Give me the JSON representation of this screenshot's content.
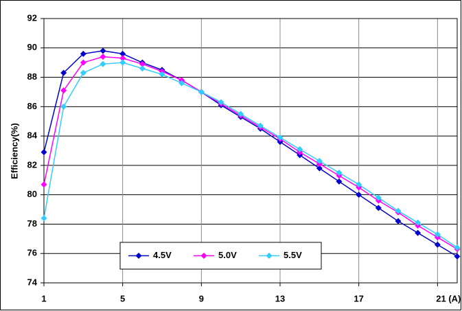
{
  "chart_data": {
    "type": "line",
    "ylabel": "Efficiency(%)",
    "x": [
      1,
      2,
      3,
      4,
      5,
      6,
      7,
      8,
      9,
      10,
      11,
      12,
      13,
      14,
      15,
      16,
      17,
      18,
      19,
      20,
      21,
      22
    ],
    "series": [
      {
        "name": "4.5V",
        "color": "#0000cc",
        "values": [
          82.9,
          88.3,
          89.6,
          89.8,
          89.6,
          89.0,
          88.5,
          87.8,
          87.0,
          86.1,
          85.3,
          84.5,
          83.6,
          82.7,
          81.8,
          80.9,
          80.0,
          79.1,
          78.2,
          77.4,
          76.6,
          75.8
        ]
      },
      {
        "name": "5.0V",
        "color": "#ff00ff",
        "values": [
          80.7,
          87.1,
          89.0,
          89.4,
          89.3,
          88.9,
          88.4,
          87.8,
          87.0,
          86.2,
          85.4,
          84.6,
          83.8,
          82.9,
          82.1,
          81.3,
          80.5,
          79.6,
          78.8,
          77.9,
          77.1,
          76.3
        ]
      },
      {
        "name": "5.5V",
        "color": "#33ccff",
        "values": [
          78.4,
          86.0,
          88.3,
          88.9,
          89.0,
          88.6,
          88.2,
          87.6,
          87.0,
          86.3,
          85.5,
          84.7,
          83.9,
          83.1,
          82.3,
          81.5,
          80.7,
          79.8,
          78.9,
          78.1,
          77.3,
          76.4
        ]
      }
    ],
    "xlim": [
      1,
      22
    ],
    "xticks": [
      1,
      5,
      9,
      13,
      17,
      {
        "value": 21,
        "label": "21 (A)"
      }
    ],
    "ylim": [
      74,
      92
    ],
    "yticks": [
      74,
      76,
      78,
      80,
      82,
      84,
      86,
      88,
      90,
      92
    ],
    "grid": true,
    "legend": "bottom"
  }
}
